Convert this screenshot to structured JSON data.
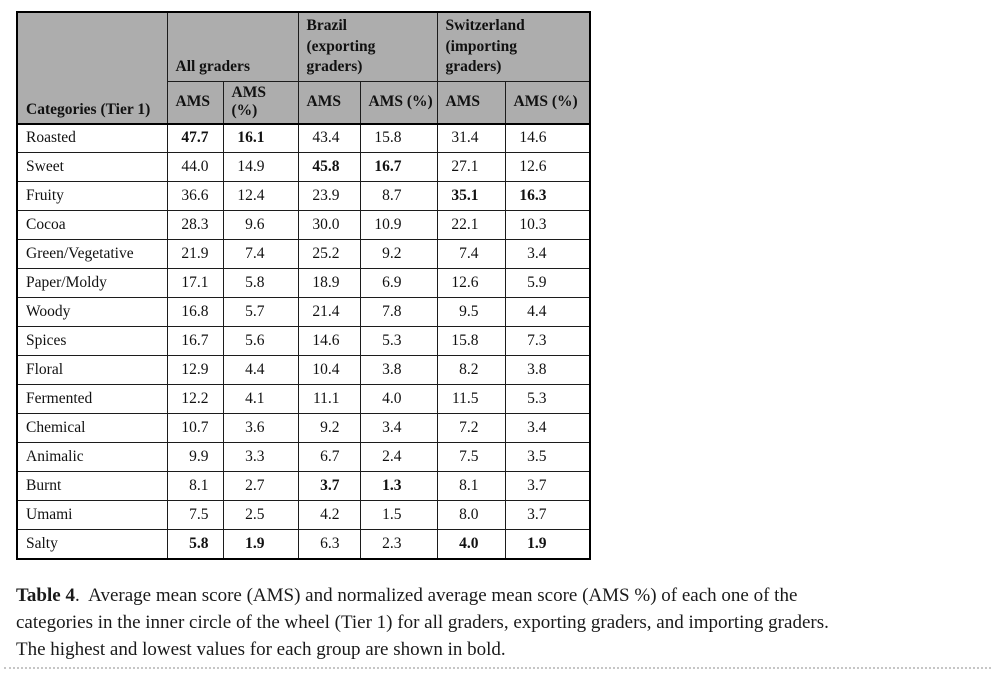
{
  "table": {
    "first_col_header": "Categories (Tier 1)",
    "groups": [
      "All graders",
      "Brazil\n(exporting\ngraders)",
      "Switzerland\n(importing\ngraders)"
    ],
    "sub_headers": [
      "AMS",
      "AMS (%)",
      "AMS",
      "AMS (%)",
      "AMS",
      "AMS (%)"
    ],
    "rows": [
      {
        "category": "Roasted",
        "values": [
          "47.7",
          "16.1",
          "43.4",
          "15.8",
          "31.4",
          "14.6"
        ],
        "bold": [
          0,
          1
        ]
      },
      {
        "category": "Sweet",
        "values": [
          "44.0",
          "14.9",
          "45.8",
          "16.7",
          "27.1",
          "12.6"
        ],
        "bold": [
          2,
          3
        ]
      },
      {
        "category": "Fruity",
        "values": [
          "36.6",
          "12.4",
          "23.9",
          "8.7",
          "35.1",
          "16.3"
        ],
        "bold": [
          4,
          5
        ]
      },
      {
        "category": "Cocoa",
        "values": [
          "28.3",
          "9.6",
          "30.0",
          "10.9",
          "22.1",
          "10.3"
        ],
        "bold": []
      },
      {
        "category": "Green/Vegetative",
        "values": [
          "21.9",
          "7.4",
          "25.2",
          "9.2",
          "7.4",
          "3.4"
        ],
        "bold": []
      },
      {
        "category": "Paper/Moldy",
        "values": [
          "17.1",
          "5.8",
          "18.9",
          "6.9",
          "12.6",
          "5.9"
        ],
        "bold": []
      },
      {
        "category": "Woody",
        "values": [
          "16.8",
          "5.7",
          "21.4",
          "7.8",
          "9.5",
          "4.4"
        ],
        "bold": []
      },
      {
        "category": "Spices",
        "values": [
          "16.7",
          "5.6",
          "14.6",
          "5.3",
          "15.8",
          "7.3"
        ],
        "bold": []
      },
      {
        "category": "Floral",
        "values": [
          "12.9",
          "4.4",
          "10.4",
          "3.8",
          "8.2",
          "3.8"
        ],
        "bold": []
      },
      {
        "category": "Fermented",
        "values": [
          "12.2",
          "4.1",
          "11.1",
          "4.0",
          "11.5",
          "5.3"
        ],
        "bold": []
      },
      {
        "category": "Chemical",
        "values": [
          "10.7",
          "3.6",
          "9.2",
          "3.4",
          "7.2",
          "3.4"
        ],
        "bold": []
      },
      {
        "category": "Animalic",
        "values": [
          "9.9",
          "3.3",
          "6.7",
          "2.4",
          "7.5",
          "3.5"
        ],
        "bold": []
      },
      {
        "category": "Burnt",
        "values": [
          "8.1",
          "2.7",
          "3.7",
          "1.3",
          "8.1",
          "3.7"
        ],
        "bold": [
          2,
          3
        ]
      },
      {
        "category": "Umami",
        "values": [
          "7.5",
          "2.5",
          "4.2",
          "1.5",
          "8.0",
          "3.7"
        ],
        "bold": []
      },
      {
        "category": "Salty",
        "values": [
          "5.8",
          "1.9",
          "6.3",
          "2.3",
          "4.0",
          "1.9"
        ],
        "bold": [
          0,
          1,
          4,
          5
        ]
      }
    ]
  },
  "caption": {
    "label": "Table 4",
    "line1": ".  Average mean score (AMS) and normalized average mean score (AMS %) of each one of the",
    "line2": "categories in the inner circle of the wheel (Tier 1) for all graders, exporting graders, and importing graders.",
    "line3": "The highest and lowest values for each group are shown in bold."
  },
  "colors": {
    "header_bg": "#adadad",
    "border": "#000000",
    "text": "#111111"
  }
}
